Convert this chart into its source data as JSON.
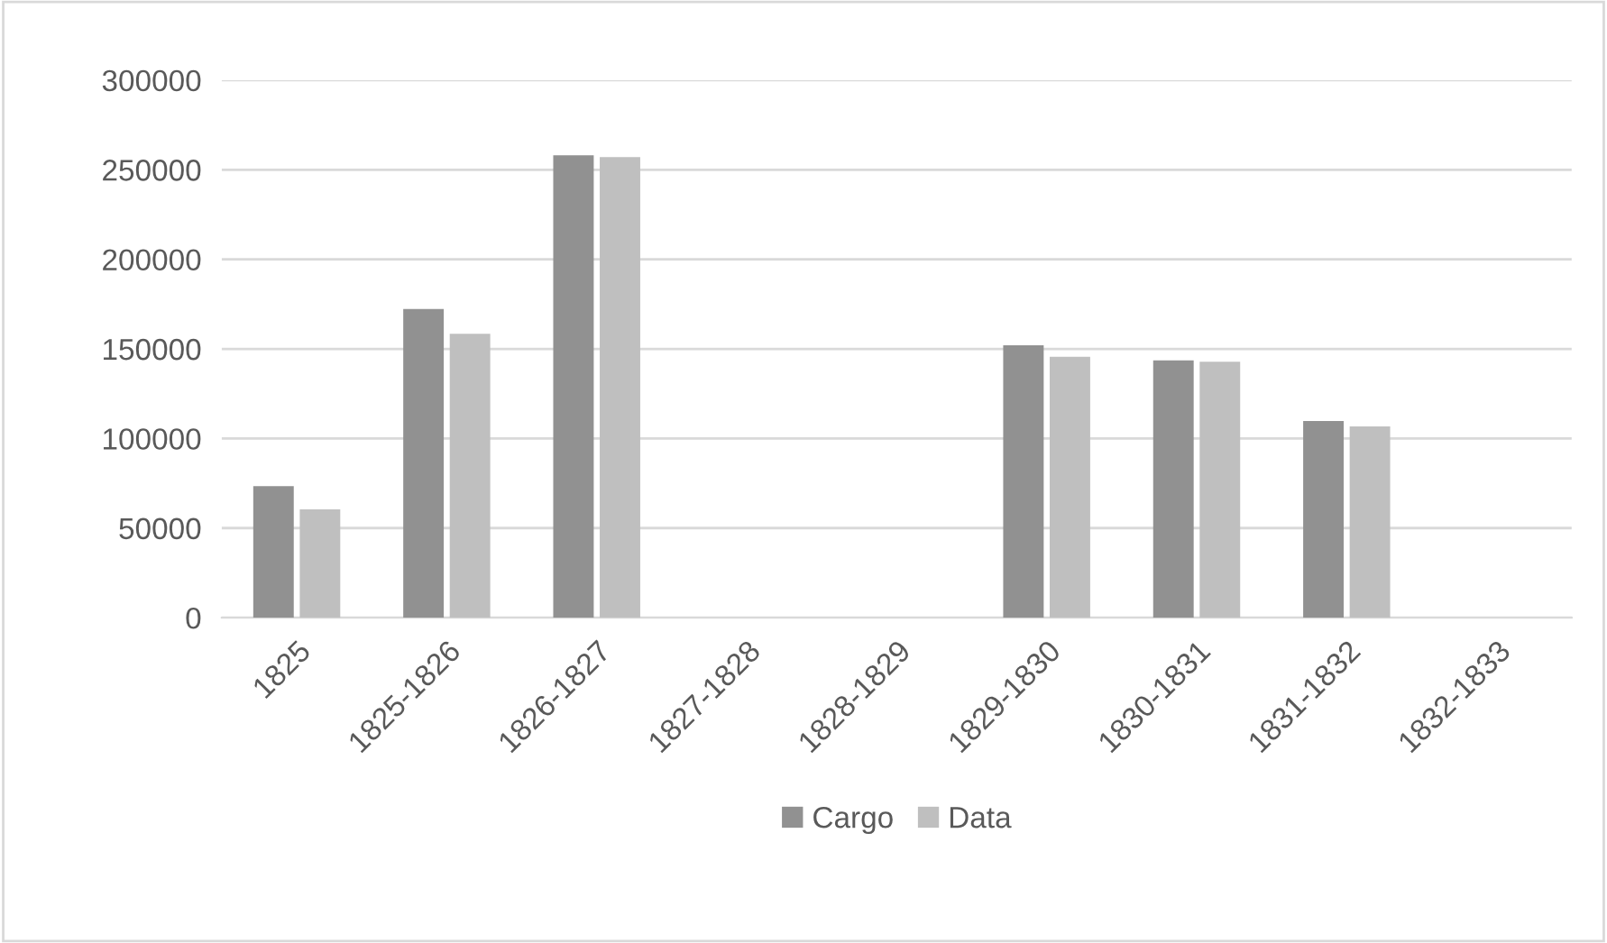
{
  "chart_data": {
    "type": "bar",
    "categories": [
      "1825",
      "1825-1826",
      "1826-1827",
      "1827-1828",
      "1828-1829",
      "1829-1830",
      "1830-1831",
      "1831-1832",
      "1832-1833"
    ],
    "series": [
      {
        "name": "Cargo",
        "color": "#919191",
        "values": [
          73400,
          172300,
          258100,
          null,
          null,
          152000,
          143600,
          109700,
          null
        ]
      },
      {
        "name": "Data",
        "color": "#bfbfbf",
        "values": [
          60500,
          158500,
          257100,
          null,
          null,
          145600,
          142900,
          106700,
          null
        ]
      }
    ],
    "ylim": [
      0,
      300000
    ],
    "yticks": [
      0,
      50000,
      100000,
      150000,
      200000,
      250000,
      300000
    ],
    "grid": "y",
    "legend": "bottom"
  }
}
